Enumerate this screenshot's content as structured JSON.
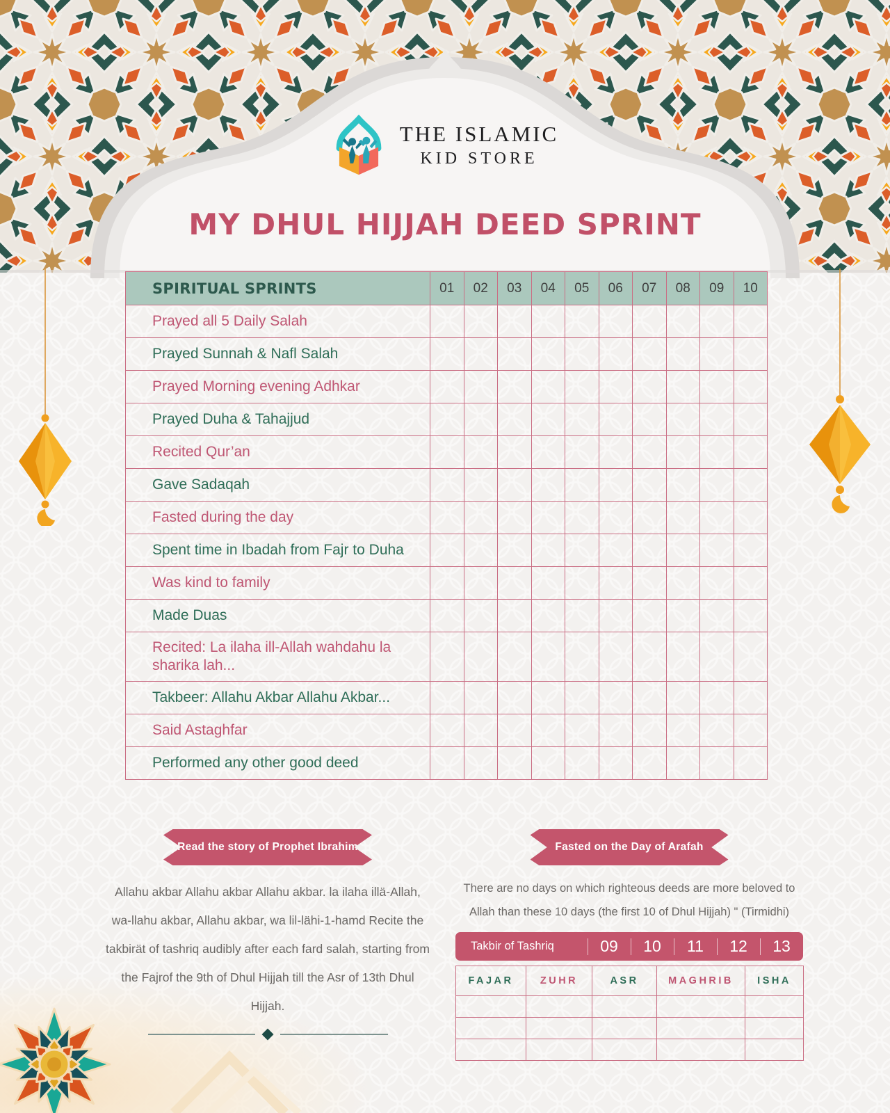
{
  "brand": {
    "line1": "THE ISLAMIC",
    "line2": "KID STORE"
  },
  "page_title": "MY DHUL HIJJAH DEED SPRINT",
  "tracker": {
    "header_label": "SPIRITUAL SPRINTS",
    "day_headers": [
      "01",
      "02",
      "03",
      "04",
      "05",
      "06",
      "07",
      "08",
      "09",
      "10"
    ],
    "rows": [
      {
        "label": "Prayed all 5 Daily Salah",
        "tone": "pink"
      },
      {
        "label": "Prayed Sunnah & Nafl Salah",
        "tone": "green"
      },
      {
        "label": "Prayed Morning evening Adhkar",
        "tone": "pink"
      },
      {
        "label": "Prayed Duha & Tahajjud",
        "tone": "green"
      },
      {
        "label": "Recited Qur’an",
        "tone": "pink"
      },
      {
        "label": "Gave Sadaqah",
        "tone": "green"
      },
      {
        "label": "Fasted during the day",
        "tone": "pink"
      },
      {
        "label": "Spent time in Ibadah from Fajr to Duha",
        "tone": "green"
      },
      {
        "label": "Was kind to family",
        "tone": "pink"
      },
      {
        "label": "Made Duas",
        "tone": "green"
      },
      {
        "label": "Recited: La ilaha ill-Allah wahdahu la sharika lah...",
        "tone": "pink"
      },
      {
        "label": "Takbeer: Allahu Akbar Allahu Akbar...",
        "tone": "green"
      },
      {
        "label": "Said Astaghfar",
        "tone": "pink"
      },
      {
        "label": "Performed any other good deed",
        "tone": "green"
      }
    ]
  },
  "ibrahim_section": {
    "banner": "Read the story of Prophet Ibrahim",
    "body": "Allahu akbar Allahu akbar Allahu akbar.  la ilaha illä-Allah, wa-llahu akbar, Allahu akbar, wa lil-lähi-1-hamd Recite the takbirät of tashriq audibly after each fard salah, starting from the Fajrof the 9th of Dhul Hijjah till the  Asr of 13th Dhul Hijjah."
  },
  "arafah_section": {
    "banner": "Fasted on the Day of Arafah",
    "body": "There are no days on which righteous deeds are more beloved to Allah than these 10 days (the first 10 of Dhul Hijjah) \" (Tirmidhi)",
    "takbir_label": "Takbir of Tashriq",
    "takbir_days": [
      "09",
      "10",
      "11",
      "12",
      "13"
    ],
    "prayer_headers": [
      {
        "label": "FAJAR",
        "tone": "green"
      },
      {
        "label": "ZUHR",
        "tone": "pink"
      },
      {
        "label": "ASR",
        "tone": "green"
      },
      {
        "label": "MAGHRIB",
        "tone": "pink"
      },
      {
        "label": "ISHA",
        "tone": "green"
      }
    ],
    "blank_row_count": 3
  },
  "colors": {
    "rose_text": "#bf5673",
    "green_text": "#2e6d57",
    "border_rose": "#ca6e84",
    "banner_rose": "#c4556c",
    "header_sage": "#abc8bd",
    "header_text": "#2d594d",
    "pattern_orange": "#dc5e29",
    "pattern_teal": "#2c574e",
    "pattern_gold": "#c19150",
    "pattern_yellow": "#f7a81b",
    "lantern_gold": "#f2a51f"
  }
}
